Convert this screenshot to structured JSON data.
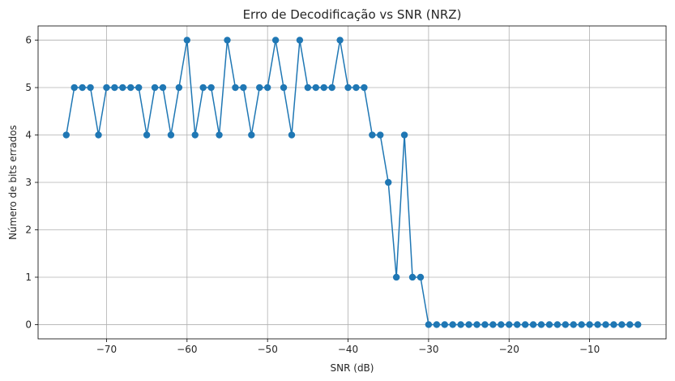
{
  "chart_data": {
    "type": "line",
    "title": "Erro de Decodificação vs SNR (NRZ)",
    "xlabel": "SNR (dB)",
    "ylabel": "Número de bits errados",
    "xlim": [
      -78.5,
      -0.5
    ],
    "ylim": [
      -0.3,
      6.3
    ],
    "xticks": [
      -70,
      -60,
      -50,
      -40,
      -30,
      -20,
      -10
    ],
    "xtick_labels": [
      "−70",
      "−60",
      "−50",
      "−40",
      "−30",
      "−20",
      "−10"
    ],
    "yticks": [
      0,
      1,
      2,
      3,
      4,
      5,
      6
    ],
    "ytick_labels": [
      "0",
      "1",
      "2",
      "3",
      "4",
      "5",
      "6"
    ],
    "grid": true,
    "color": "#1f77b4",
    "marker": "circle",
    "x": [
      -75,
      -74,
      -73,
      -72,
      -71,
      -70,
      -69,
      -68,
      -67,
      -66,
      -65,
      -64,
      -63,
      -62,
      -61,
      -60,
      -59,
      -58,
      -57,
      -56,
      -55,
      -54,
      -53,
      -52,
      -51,
      -50,
      -49,
      -48,
      -47,
      -46,
      -45,
      -44,
      -43,
      -42,
      -41,
      -40,
      -39,
      -38,
      -37,
      -36,
      -35,
      -34,
      -33,
      -32,
      -31,
      -30,
      -29,
      -28,
      -27,
      -26,
      -25,
      -24,
      -23,
      -22,
      -21,
      -20,
      -19,
      -18,
      -17,
      -16,
      -15,
      -14,
      -13,
      -12,
      -11,
      -10,
      -9,
      -8,
      -7,
      -6,
      -5,
      -4
    ],
    "y": [
      4,
      5,
      5,
      5,
      4,
      5,
      5,
      5,
      5,
      5,
      4,
      5,
      5,
      4,
      5,
      6,
      4,
      5,
      5,
      4,
      6,
      5,
      5,
      4,
      5,
      5,
      6,
      5,
      4,
      6,
      5,
      5,
      5,
      5,
      6,
      5,
      5,
      5,
      4,
      4,
      3,
      1,
      4,
      1,
      1,
      0,
      0,
      0,
      0,
      0,
      0,
      0,
      0,
      0,
      0,
      0,
      0,
      0,
      0,
      0,
      0,
      0,
      0,
      0,
      0,
      0,
      0,
      0,
      0,
      0,
      0,
      0
    ]
  }
}
